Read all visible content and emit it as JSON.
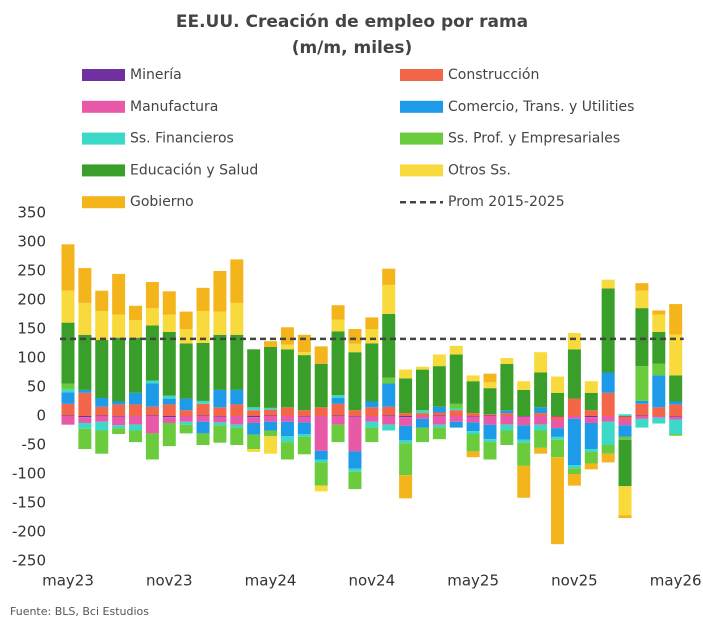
{
  "chart_data": {
    "type": "stacked_bar",
    "title": "EE.UU. Creación de empleo por rama",
    "subtitle": "(m/m, miles)",
    "source": "Fuente: BLS, Bci Estudios",
    "categories": [
      "may23",
      null,
      null,
      null,
      null,
      null,
      "nov23",
      null,
      null,
      null,
      null,
      null,
      "may24",
      null,
      null,
      null,
      null,
      null,
      "nov24",
      null,
      null,
      null,
      null,
      null,
      "may25",
      null,
      null,
      null,
      null,
      null,
      "nov25",
      null,
      null,
      null,
      null,
      null,
      "may26"
    ],
    "ylim": [
      -250,
      350
    ],
    "yticks": [
      -250,
      -200,
      -150,
      -100,
      -50,
      0,
      50,
      100,
      150,
      200,
      250,
      300,
      350
    ],
    "series": [
      {
        "name": "Minería",
        "color": "#7030a0",
        "values": [
          1,
          -2,
          1,
          -1,
          0,
          1,
          -2,
          0,
          1,
          -1,
          0,
          -2,
          1,
          0,
          -1,
          0,
          1,
          -1,
          0,
          1,
          -2,
          0,
          1,
          0,
          -1,
          1,
          0,
          -1,
          0,
          -1,
          0,
          -2,
          0,
          -1,
          1,
          0,
          -1
        ]
      },
      {
        "name": "Construcción",
        "color": "#f4664a",
        "values": [
          20,
          40,
          15,
          20,
          20,
          15,
          20,
          10,
          20,
          15,
          20,
          10,
          10,
          15,
          10,
          15,
          20,
          10,
          15,
          15,
          5,
          5,
          5,
          10,
          5,
          2,
          5,
          0,
          5,
          -5,
          30,
          10,
          40,
          -5,
          20,
          15,
          20
        ]
      },
      {
        "name": "Manufactura",
        "color": "#e85aa8",
        "values": [
          -15,
          -10,
          -10,
          -15,
          -15,
          -30,
          -10,
          -10,
          -10,
          -10,
          -15,
          -10,
          -10,
          -10,
          -10,
          -60,
          -15,
          -60,
          -10,
          -15,
          -15,
          -5,
          -15,
          -10,
          -10,
          -15,
          -15,
          -15,
          -15,
          -15,
          -5,
          -10,
          -10,
          -10,
          -5,
          -3,
          -5
        ]
      },
      {
        "name": "Comercio, Trans. y Utilities",
        "color": "#1e9be8",
        "values": [
          20,
          5,
          15,
          5,
          20,
          40,
          10,
          20,
          -20,
          30,
          25,
          -20,
          -15,
          -25,
          -20,
          -15,
          10,
          -30,
          10,
          40,
          -25,
          -15,
          10,
          -10,
          -15,
          -25,
          5,
          -25,
          10,
          -15,
          -80,
          -45,
          35,
          -20,
          5,
          55,
          5
        ]
      },
      {
        "name": "Ss. Financieros",
        "color": "#3cd9c8",
        "values": [
          5,
          -10,
          -15,
          -5,
          -10,
          5,
          5,
          -5,
          5,
          -5,
          -5,
          5,
          3,
          -10,
          -5,
          -5,
          5,
          -5,
          -10,
          -10,
          -5,
          5,
          -5,
          3,
          -5,
          -5,
          -10,
          -5,
          -10,
          -5,
          -5,
          -5,
          -40,
          3,
          -15,
          -10,
          -25
        ]
      },
      {
        "name": "Ss. Prof. y Empresariales",
        "color": "#6acc3c",
        "values": [
          10,
          -35,
          -40,
          -10,
          -20,
          -45,
          -40,
          -15,
          -20,
          -30,
          -30,
          -25,
          -10,
          -30,
          -30,
          -40,
          -30,
          -30,
          -25,
          10,
          -55,
          -25,
          -20,
          8,
          -30,
          -30,
          -25,
          -40,
          -30,
          -30,
          -10,
          -20,
          -15,
          -5,
          60,
          20,
          -3
        ]
      },
      {
        "name": "Educación y Salud",
        "color": "#3a9e2a",
        "values": [
          105,
          95,
          100,
          110,
          95,
          95,
          110,
          95,
          100,
          95,
          95,
          100,
          105,
          100,
          95,
          75,
          110,
          100,
          100,
          110,
          60,
          70,
          70,
          85,
          55,
          45,
          80,
          45,
          60,
          40,
          85,
          30,
          145,
          -80,
          100,
          55,
          45
        ]
      },
      {
        "name": "Otros Ss.",
        "color": "#f9da3c",
        "values": [
          55,
          55,
          50,
          40,
          30,
          30,
          30,
          25,
          55,
          40,
          55,
          -5,
          -30,
          8,
          5,
          -10,
          20,
          15,
          25,
          50,
          15,
          5,
          20,
          15,
          10,
          10,
          10,
          15,
          35,
          28,
          28,
          20,
          15,
          -50,
          30,
          30,
          70
        ]
      },
      {
        "name": "Gobierno",
        "color": "#f4b41c",
        "values": [
          80,
          60,
          35,
          70,
          25,
          45,
          40,
          30,
          40,
          70,
          75,
          0,
          10,
          30,
          30,
          30,
          25,
          25,
          20,
          28,
          -40,
          0,
          0,
          0,
          -10,
          15,
          0,
          -55,
          -10,
          -150,
          -20,
          -10,
          -15,
          -5,
          13,
          7,
          53
        ]
      }
    ],
    "average": {
      "name": "Prom 2015-2025",
      "value": 133,
      "color": "#444444"
    }
  }
}
